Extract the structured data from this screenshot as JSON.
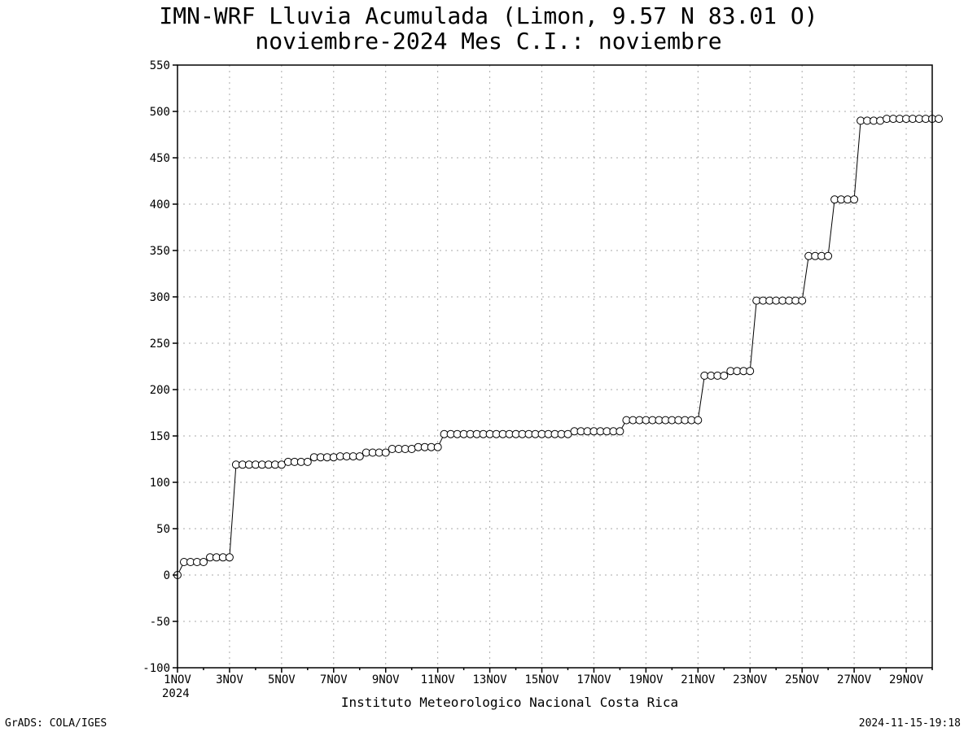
{
  "chart_data": {
    "type": "line",
    "title": "IMN-WRF  Lluvia Acumulada (Limon, 9.57  N 83.01  O)",
    "subtitle": "noviembre-2024 Mes C.I.: noviembre",
    "xlabel": "Instituto Meteorologico Nacional Costa Rica",
    "ylabel": "",
    "x_tick_labels": [
      "1NOV",
      "3NOV",
      "5NOV",
      "7NOV",
      "9NOV",
      "11NOV",
      "13NOV",
      "15NOV",
      "17NOV",
      "19NOV",
      "21NOV",
      "23NOV",
      "25NOV",
      "27NOV",
      "29NOV"
    ],
    "x_year_label": "2024",
    "xlim_days": [
      1,
      30
    ],
    "ylim": [
      -100,
      550
    ],
    "y_ticks": [
      -100,
      -50,
      0,
      50,
      100,
      150,
      200,
      250,
      300,
      350,
      400,
      450,
      500,
      550
    ],
    "grid": true,
    "marker": "open-circle",
    "series": [
      {
        "x_start_day": 1,
        "x_step_days": 0.25,
        "values": [
          0,
          14,
          14,
          14,
          14,
          19,
          19,
          19,
          19,
          119,
          119,
          119,
          119,
          119,
          119,
          119,
          119,
          122,
          122,
          122,
          122,
          127,
          127,
          127,
          127,
          128,
          128,
          128,
          128,
          132,
          132,
          132,
          132,
          136,
          136,
          136,
          136,
          138,
          138,
          138,
          138,
          152,
          152,
          152,
          152,
          152,
          152,
          152,
          152,
          152,
          152,
          152,
          152,
          152,
          152,
          152,
          152,
          152,
          152,
          152,
          152,
          155,
          155,
          155,
          155,
          155,
          155,
          155,
          155,
          167,
          167,
          167,
          167,
          167,
          167,
          167,
          167,
          167,
          167,
          167,
          167,
          215,
          215,
          215,
          215,
          220,
          220,
          220,
          220,
          296,
          296,
          296,
          296,
          296,
          296,
          296,
          296,
          344,
          344,
          344,
          344,
          405,
          405,
          405,
          405,
          490,
          490,
          490,
          490,
          492,
          492,
          492,
          492,
          492,
          492,
          492,
          492,
          492
        ]
      }
    ]
  },
  "footer": {
    "left": "GrADS: COLA/IGES",
    "right": "2024-11-15-19:18"
  }
}
